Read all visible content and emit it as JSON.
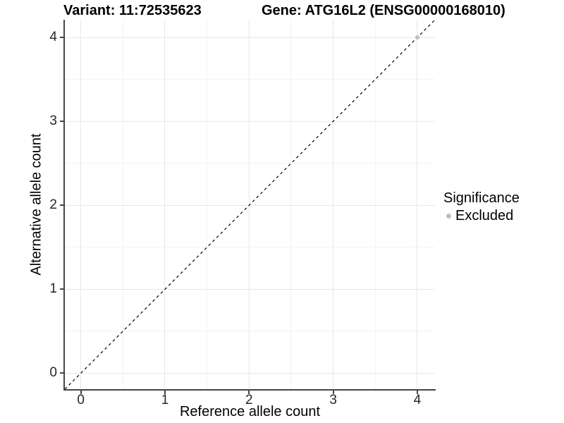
{
  "chart_data": {
    "type": "scatter",
    "title_left": "Variant: 11:72535623",
    "title_right": "Gene: ATG16L2 (ENSG00000168010)",
    "xlabel": "Reference allele count",
    "ylabel": "Alternative allele count",
    "xlim": [
      -0.19,
      4.21
    ],
    "ylim": [
      -0.19,
      4.21
    ],
    "xticks": [
      0,
      1,
      2,
      3,
      4
    ],
    "yticks": [
      0,
      1,
      2,
      3,
      4
    ],
    "minor_xticks": [
      0.5,
      1.5,
      2.5,
      3.5
    ],
    "minor_yticks": [
      0.5,
      1.5,
      2.5,
      3.5
    ],
    "grid": "major+minor, light gray on white",
    "reference_line": {
      "type": "identity",
      "slope": 1,
      "intercept": 0,
      "style": "dashed",
      "color": "#000000"
    },
    "series": [
      {
        "name": "Excluded",
        "color": "#bebebe",
        "marker": "circle",
        "marker_size": 6,
        "points": [
          [
            4,
            4
          ]
        ]
      }
    ],
    "legend": {
      "title": "Significance",
      "position": "right",
      "entries": [
        {
          "label": "Excluded",
          "color": "#bebebe"
        }
      ]
    }
  },
  "colors": {
    "axis_line": "#464646",
    "grid_major": "#e7e7e7",
    "grid_minor": "#f3f3f3",
    "tick_text": "#262626",
    "text": "#000000",
    "background": "#ffffff"
  }
}
